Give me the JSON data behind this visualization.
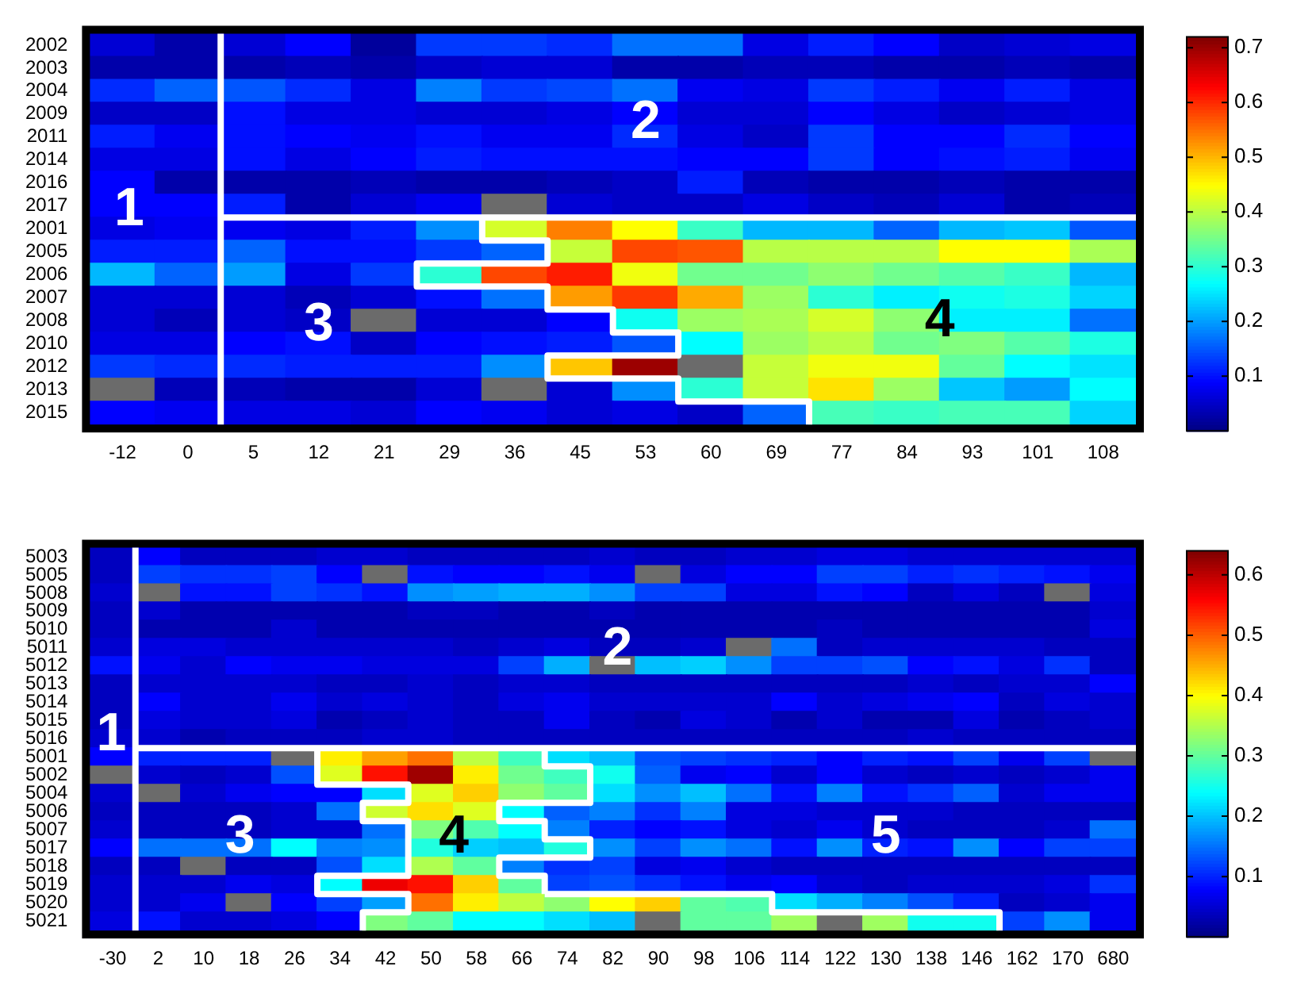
{
  "chart_data": [
    {
      "type": "heatmap",
      "categories": [
        "-12",
        "0",
        "5",
        "12",
        "21",
        "29",
        "36",
        "45",
        "53",
        "60",
        "69",
        "77",
        "84",
        "93",
        "101",
        "108"
      ],
      "y_categories": [
        "2002",
        "2003",
        "2004",
        "2009",
        "2011",
        "2014",
        "2016",
        "2017",
        "2001",
        "2005",
        "2006",
        "2007",
        "2008",
        "2010",
        "2012",
        "2013",
        "2015"
      ],
      "cells": [
        [
          0.06,
          0.03,
          0.06,
          0.09,
          0.02,
          0.13,
          0.13,
          0.12,
          0.17,
          0.17,
          0.07,
          0.11,
          0.09,
          0.05,
          0.06,
          0.07
        ],
        [
          0.03,
          0.03,
          0.03,
          0.04,
          0.03,
          0.05,
          0.06,
          0.06,
          0.03,
          0.03,
          0.04,
          0.04,
          0.03,
          0.03,
          0.04,
          0.03
        ],
        [
          0.12,
          0.16,
          0.15,
          0.12,
          0.07,
          0.18,
          0.13,
          0.14,
          0.17,
          0.08,
          0.07,
          0.13,
          0.11,
          0.08,
          0.11,
          0.07
        ],
        [
          0.05,
          0.05,
          0.1,
          0.07,
          0.07,
          0.06,
          0.06,
          0.07,
          0.09,
          0.06,
          0.06,
          0.09,
          0.07,
          0.05,
          0.06,
          0.07
        ],
        [
          0.11,
          0.08,
          0.1,
          0.09,
          0.08,
          0.1,
          0.08,
          0.08,
          0.12,
          0.07,
          0.05,
          0.13,
          0.09,
          0.09,
          0.12,
          0.09
        ],
        [
          0.07,
          0.07,
          0.1,
          0.07,
          0.09,
          0.11,
          0.1,
          0.1,
          0.1,
          0.09,
          0.09,
          0.13,
          0.09,
          0.1,
          0.11,
          0.08
        ],
        [
          0.09,
          0.03,
          0.03,
          0.03,
          0.04,
          0.03,
          0.03,
          0.04,
          0.05,
          0.11,
          0.04,
          0.03,
          0.03,
          0.04,
          0.03,
          0.03
        ],
        [
          0.09,
          0.09,
          0.11,
          0.03,
          0.06,
          0.08,
          null,
          0.06,
          0.05,
          0.05,
          0.07,
          0.05,
          0.04,
          0.06,
          0.03,
          0.04
        ],
        [
          0.07,
          0.08,
          0.08,
          0.07,
          0.11,
          0.19,
          0.42,
          0.54,
          0.45,
          0.31,
          0.22,
          0.22,
          0.16,
          0.22,
          0.23,
          0.15
        ],
        [
          0.11,
          0.11,
          0.16,
          0.1,
          0.1,
          0.13,
          0.16,
          0.41,
          0.58,
          0.57,
          0.4,
          0.4,
          0.4,
          0.45,
          0.45,
          0.39
        ],
        [
          0.22,
          0.16,
          0.2,
          0.07,
          0.13,
          0.3,
          0.58,
          0.61,
          0.44,
          0.35,
          0.35,
          0.37,
          0.35,
          0.33,
          0.31,
          0.22
        ],
        [
          0.06,
          0.06,
          0.06,
          0.04,
          0.06,
          0.1,
          0.17,
          0.52,
          0.59,
          0.51,
          0.38,
          0.3,
          0.26,
          0.28,
          0.29,
          0.24
        ],
        [
          0.06,
          0.04,
          0.06,
          0.05,
          null,
          0.06,
          0.06,
          0.09,
          0.28,
          0.38,
          0.39,
          0.42,
          0.37,
          0.26,
          0.26,
          0.17
        ],
        [
          0.07,
          0.07,
          0.09,
          0.1,
          0.05,
          0.09,
          0.1,
          0.11,
          0.15,
          0.27,
          0.38,
          0.4,
          0.35,
          0.36,
          0.33,
          0.29
        ],
        [
          0.13,
          0.12,
          0.12,
          0.11,
          0.11,
          0.11,
          0.19,
          0.49,
          0.7,
          null,
          0.41,
          0.44,
          0.44,
          0.34,
          0.27,
          0.25
        ],
        [
          null,
          0.04,
          0.04,
          0.03,
          0.03,
          0.06,
          null,
          0.06,
          0.19,
          0.3,
          0.41,
          0.47,
          0.38,
          0.23,
          0.2,
          0.27
        ],
        [
          0.09,
          0.08,
          0.07,
          0.07,
          0.06,
          0.09,
          0.08,
          0.06,
          0.07,
          0.05,
          0.16,
          0.32,
          0.31,
          0.32,
          0.32,
          0.24
        ]
      ],
      "clim": [
        0,
        0.72
      ],
      "cticks": [
        0.1,
        0.2,
        0.3,
        0.4,
        0.5,
        0.6,
        0.7
      ],
      "annotations": [
        "1",
        "2",
        "3",
        "4"
      ]
    },
    {
      "type": "heatmap",
      "categories": [
        "-30",
        "2",
        "10",
        "18",
        "26",
        "34",
        "42",
        "50",
        "58",
        "66",
        "74",
        "82",
        "90",
        "98",
        "106",
        "114",
        "122",
        "130",
        "138",
        "146",
        "162",
        "170",
        "680"
      ],
      "y_categories": [
        "5003",
        "5005",
        "5008",
        "5009",
        "5010",
        "5011",
        "5012",
        "5013",
        "5014",
        "5015",
        "5016",
        "5001",
        "5002",
        "5004",
        "5006",
        "5007",
        "5017",
        "5018",
        "5019",
        "5020",
        "5021"
      ],
      "cells": [
        [
          0.04,
          0.08,
          0.04,
          0.04,
          0.04,
          0.05,
          0.05,
          0.04,
          0.04,
          0.04,
          0.04,
          0.05,
          0.04,
          0.04,
          0.05,
          0.05,
          0.06,
          0.06,
          0.05,
          0.05,
          0.05,
          0.05,
          0.05
        ],
        [
          0.04,
          0.12,
          0.11,
          0.11,
          0.12,
          0.08,
          null,
          0.09,
          0.08,
          0.08,
          0.09,
          0.07,
          null,
          0.06,
          0.08,
          0.08,
          0.12,
          0.12,
          0.1,
          0.11,
          0.1,
          0.09,
          0.07
        ],
        [
          0.05,
          null,
          0.09,
          0.09,
          0.12,
          0.11,
          0.09,
          0.17,
          0.18,
          0.19,
          0.19,
          0.17,
          0.12,
          0.12,
          0.06,
          0.06,
          0.09,
          0.08,
          0.04,
          0.06,
          0.04,
          null,
          0.06
        ],
        [
          0.04,
          0.05,
          0.03,
          0.03,
          0.03,
          0.03,
          0.03,
          0.04,
          0.04,
          0.03,
          0.03,
          0.04,
          0.03,
          0.03,
          0.03,
          0.03,
          0.03,
          0.03,
          0.03,
          0.03,
          0.03,
          0.03,
          0.05
        ],
        [
          0.04,
          0.03,
          0.03,
          0.03,
          0.05,
          0.03,
          0.03,
          0.03,
          0.03,
          0.03,
          0.03,
          0.03,
          0.03,
          0.03,
          0.03,
          0.03,
          0.04,
          0.03,
          0.03,
          0.03,
          0.03,
          0.03,
          0.06
        ],
        [
          0.05,
          0.06,
          0.06,
          0.05,
          0.05,
          0.05,
          0.05,
          0.05,
          0.04,
          0.05,
          0.06,
          0.04,
          0.04,
          0.05,
          null,
          0.15,
          0.04,
          0.05,
          0.05,
          0.05,
          0.05,
          0.04,
          0.04
        ],
        [
          0.09,
          0.07,
          0.05,
          0.08,
          0.07,
          0.07,
          0.06,
          0.06,
          0.06,
          0.12,
          0.19,
          null,
          0.2,
          0.21,
          0.17,
          0.12,
          0.12,
          0.13,
          0.08,
          0.09,
          0.06,
          0.11,
          0.04
        ],
        [
          0.04,
          0.05,
          0.05,
          0.05,
          0.05,
          0.04,
          0.04,
          0.05,
          0.04,
          0.05,
          0.05,
          0.04,
          0.04,
          0.04,
          0.04,
          0.04,
          0.04,
          0.04,
          0.05,
          0.04,
          0.05,
          0.05,
          0.08
        ],
        [
          0.04,
          0.08,
          0.05,
          0.05,
          0.07,
          0.05,
          0.06,
          0.05,
          0.04,
          0.06,
          0.07,
          0.05,
          0.05,
          0.05,
          0.05,
          0.08,
          0.05,
          0.06,
          0.07,
          0.08,
          0.04,
          0.06,
          0.05
        ],
        [
          0.04,
          0.06,
          0.05,
          0.05,
          0.06,
          0.03,
          0.04,
          0.05,
          0.04,
          0.04,
          0.07,
          0.04,
          0.03,
          0.06,
          0.05,
          0.03,
          0.05,
          0.03,
          0.03,
          0.06,
          0.03,
          0.04,
          0.05
        ],
        [
          0.05,
          0.05,
          0.03,
          0.04,
          0.04,
          0.04,
          0.05,
          0.05,
          0.04,
          0.04,
          0.04,
          0.04,
          0.04,
          0.04,
          0.04,
          0.04,
          0.04,
          0.04,
          0.05,
          0.04,
          0.04,
          0.04,
          0.04
        ],
        [
          0.08,
          0.1,
          0.1,
          0.1,
          null,
          0.41,
          0.46,
          0.49,
          0.36,
          0.28,
          0.22,
          0.2,
          0.13,
          0.12,
          0.11,
          0.1,
          0.08,
          0.1,
          0.09,
          0.12,
          0.07,
          0.12,
          null
        ],
        [
          null,
          0.05,
          0.04,
          0.05,
          0.13,
          0.38,
          0.55,
          0.62,
          0.41,
          0.31,
          0.28,
          0.25,
          0.14,
          0.07,
          0.08,
          0.05,
          0.08,
          0.05,
          0.04,
          0.05,
          0.04,
          0.05,
          0.07
        ],
        [
          0.05,
          null,
          0.05,
          0.07,
          0.08,
          0.08,
          0.22,
          0.38,
          0.43,
          0.33,
          0.3,
          0.22,
          0.17,
          0.2,
          0.15,
          0.09,
          0.16,
          0.09,
          0.11,
          0.14,
          0.05,
          0.07,
          0.07
        ],
        [
          0.04,
          0.04,
          0.04,
          0.04,
          0.05,
          0.15,
          0.37,
          0.42,
          0.38,
          0.24,
          0.14,
          0.16,
          0.11,
          0.16,
          0.06,
          0.06,
          0.05,
          0.05,
          0.05,
          0.04,
          0.04,
          0.04,
          0.04
        ],
        [
          0.05,
          0.04,
          0.04,
          0.04,
          0.05,
          0.05,
          0.15,
          0.32,
          0.29,
          0.24,
          0.16,
          0.1,
          0.08,
          0.09,
          0.06,
          0.05,
          0.07,
          0.05,
          0.04,
          0.04,
          0.04,
          0.05,
          0.15
        ],
        [
          0.08,
          0.15,
          0.15,
          0.15,
          0.24,
          0.16,
          0.17,
          0.26,
          0.21,
          0.2,
          0.26,
          0.17,
          0.12,
          0.17,
          0.15,
          0.09,
          0.17,
          0.1,
          0.09,
          0.17,
          0.08,
          0.12,
          0.12
        ],
        [
          0.04,
          0.04,
          null,
          0.04,
          0.04,
          0.13,
          0.22,
          0.35,
          0.3,
          0.16,
          0.11,
          0.12,
          0.06,
          0.07,
          0.05,
          0.04,
          0.04,
          0.04,
          0.04,
          0.04,
          0.04,
          0.04,
          0.04
        ],
        [
          0.05,
          0.05,
          0.05,
          0.07,
          0.06,
          0.24,
          0.57,
          0.55,
          0.43,
          0.3,
          0.12,
          0.13,
          0.11,
          0.09,
          0.07,
          0.08,
          0.05,
          0.04,
          0.05,
          0.05,
          0.05,
          0.06,
          0.11
        ],
        [
          0.05,
          0.05,
          0.07,
          null,
          0.08,
          0.12,
          0.18,
          0.49,
          0.41,
          0.36,
          0.33,
          0.4,
          0.43,
          0.3,
          0.29,
          0.22,
          0.19,
          0.16,
          0.13,
          0.1,
          0.04,
          0.05,
          0.07
        ],
        [
          0.06,
          0.09,
          0.05,
          0.05,
          0.06,
          0.08,
          0.32,
          0.3,
          0.24,
          0.24,
          0.22,
          0.2,
          null,
          0.3,
          0.3,
          0.34,
          null,
          0.34,
          0.25,
          0.25,
          0.12,
          0.17,
          0.07
        ]
      ],
      "clim": [
        0,
        0.64
      ],
      "cticks": [
        0.1,
        0.2,
        0.3,
        0.4,
        0.5,
        0.6
      ],
      "annotations": [
        "1",
        "2",
        "3",
        "4",
        "5"
      ]
    }
  ]
}
